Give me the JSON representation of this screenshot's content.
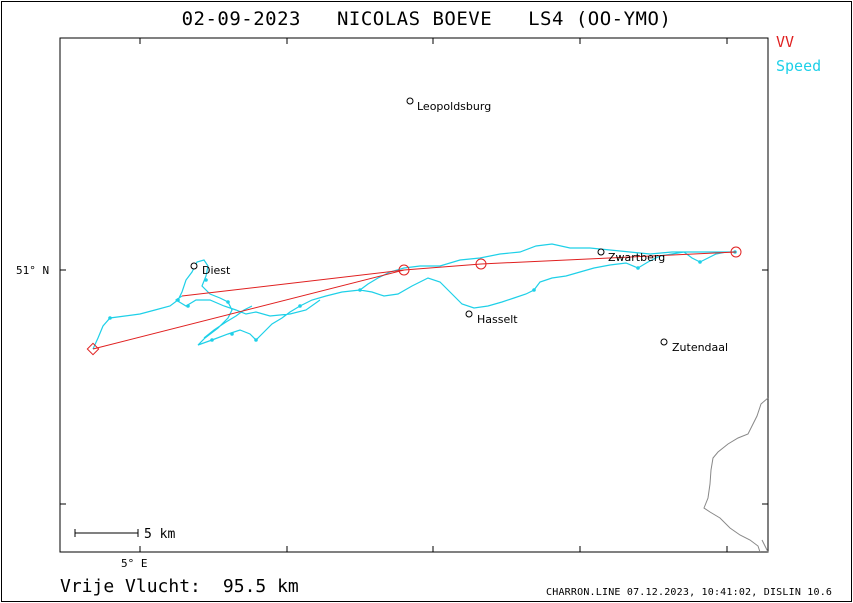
{
  "title": {
    "date": "02-09-2023",
    "pilot": "NICOLAS BOEVE",
    "glider": "LS4 (OO-YMO)"
  },
  "legend": {
    "vv": "VV",
    "speed": "Speed",
    "vv_color": "#e02020",
    "speed_color": "#1ed0e8"
  },
  "axes": {
    "lat_label": "51° N",
    "lon_label": "5° E"
  },
  "scale_bar": {
    "label": "5 km"
  },
  "towns": {
    "leopoldsburg": "Leopoldsburg",
    "diest": "Diest",
    "zwartberg": "Zwartberg",
    "hasselt": "Hasselt",
    "zutendaal": "Zutendaal"
  },
  "footer": {
    "label": "Vrije Vlucht:",
    "distance": "95.5 km",
    "credit": "CHARRON.LINE 07.12.2023, 10:41:02, DISLIN 10.6"
  }
}
